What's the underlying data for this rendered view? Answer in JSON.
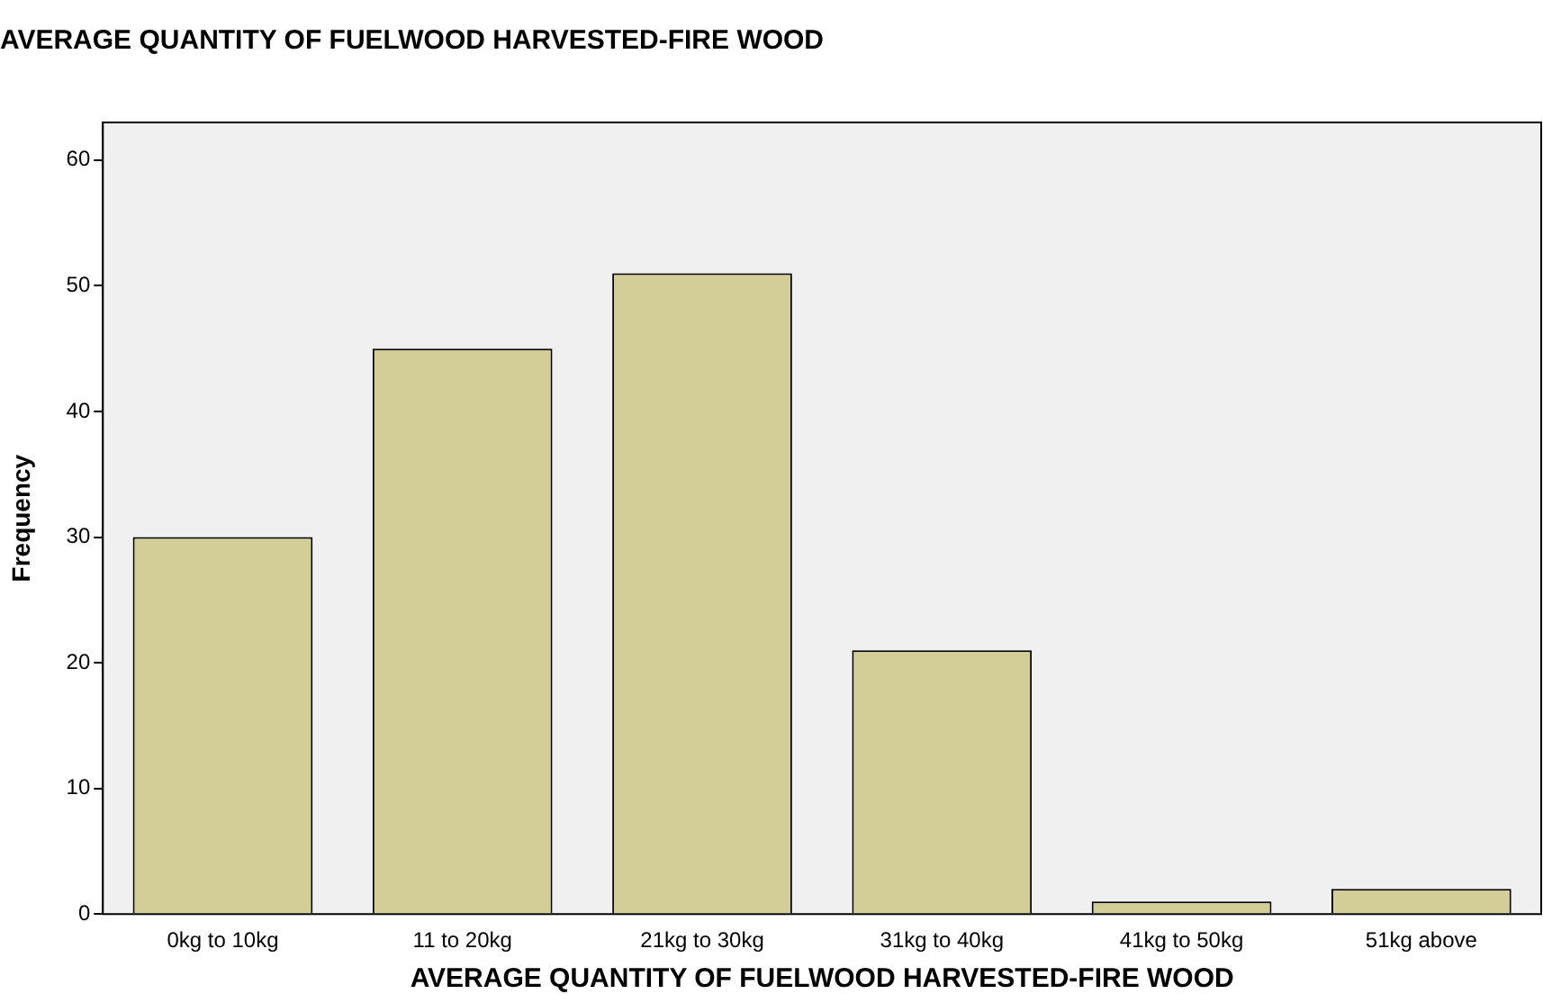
{
  "chart_data": {
    "type": "bar",
    "title": "AVERAGE QUANTITY OF FUELWOOD HARVESTED-FIRE WOOD",
    "xlabel": "AVERAGE QUANTITY OF FUELWOOD HARVESTED-FIRE WOOD",
    "ylabel": "Frequency",
    "categories": [
      "0kg to 10kg",
      "11 to 20kg",
      "21kg to 30kg",
      "31kg to 40kg",
      "41kg to 50kg",
      "51kg above"
    ],
    "values": [
      30,
      45,
      51,
      21,
      1,
      2
    ],
    "color": "#d3ce97",
    "ylim": [
      0,
      63
    ],
    "yticks": [
      0,
      10,
      20,
      30,
      40,
      50,
      60
    ],
    "grid": false,
    "legend": false
  }
}
